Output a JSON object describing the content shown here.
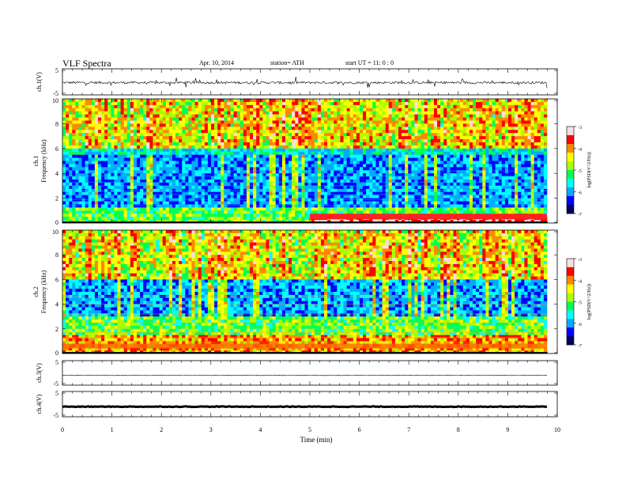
{
  "header": {
    "title": "VLF  Spectra",
    "date": "Apr. 10, 2014",
    "station": "station= ATH",
    "start": "start  UT  =    11: 0  : 0"
  },
  "chart_data": [
    {
      "type": "line",
      "panel": "ch1-waveform",
      "ylabel": "ch.1(V)",
      "ylim": [
        -5,
        5
      ],
      "yticks": [
        "5",
        "-5"
      ],
      "xlim": [
        0,
        10
      ],
      "series": [
        {
          "values": "noisy waveform around -0.3 V with spikes to about +/-2 V"
        }
      ]
    },
    {
      "type": "heatmap",
      "panel": "ch1-spectrogram",
      "ylabel": "ch.1\nFrequency  (kHz)",
      "ylabel_lines": [
        "ch.1",
        "Frequency  (kHz)"
      ],
      "ylim": [
        0,
        10
      ],
      "yticks": [
        "0",
        "2",
        "4",
        "6",
        "8",
        "10"
      ],
      "xlim": [
        0,
        9.8
      ],
      "colorbar": {
        "label": "log(PSD(V^2/Hz))",
        "range": [
          -7,
          -3
        ],
        "ticks": [
          "-3",
          "-4",
          "-5",
          "-6",
          "-7"
        ]
      },
      "features": {
        "high_band_khz": [
          6,
          10
        ],
        "low_band_khz": [
          2,
          5.8
        ],
        "strong_line_khz_after_5min": 0.6
      }
    },
    {
      "type": "heatmap",
      "panel": "ch2-spectrogram",
      "ylabel": "ch.2\nFrequency  (kHz)",
      "ylabel_lines": [
        "ch.2",
        "Frequency  (kHz)"
      ],
      "ylim": [
        0,
        10
      ],
      "yticks": [
        "0",
        "2",
        "4",
        "6",
        "8",
        "10"
      ],
      "xlim": [
        0,
        9.8
      ],
      "colorbar": {
        "label": "log(PSD(V^2/Hz))",
        "range": [
          -7,
          -3
        ],
        "ticks": [
          "-3",
          "-4",
          "-5",
          "-6",
          "-7"
        ]
      }
    },
    {
      "type": "line",
      "panel": "ch3-waveform",
      "ylabel": "ch.3(V)",
      "ylim": [
        -5,
        5
      ],
      "yticks": [
        "5",
        "-5"
      ],
      "series": [
        {
          "values": "flat around -1 V"
        }
      ]
    },
    {
      "type": "line",
      "panel": "ch4-waveform",
      "ylabel": "ch.4(V)",
      "ylim": [
        -5,
        5
      ],
      "yticks": [
        "5",
        "-5"
      ],
      "series": [
        {
          "values": "thick flat band around -1 V"
        }
      ]
    }
  ],
  "xaxis": {
    "label": "Time  (min)",
    "ticks": [
      "0",
      "1",
      "2",
      "3",
      "4",
      "5",
      "6",
      "7",
      "8",
      "9",
      "10"
    ]
  },
  "colors": {
    "colormap": [
      "#000066",
      "#0000ff",
      "#00aaff",
      "#00ffff",
      "#00ff55",
      "#aaff00",
      "#ffff00",
      "#ff8800",
      "#ff0000",
      "#ffdddd"
    ],
    "axis": "#000000"
  }
}
